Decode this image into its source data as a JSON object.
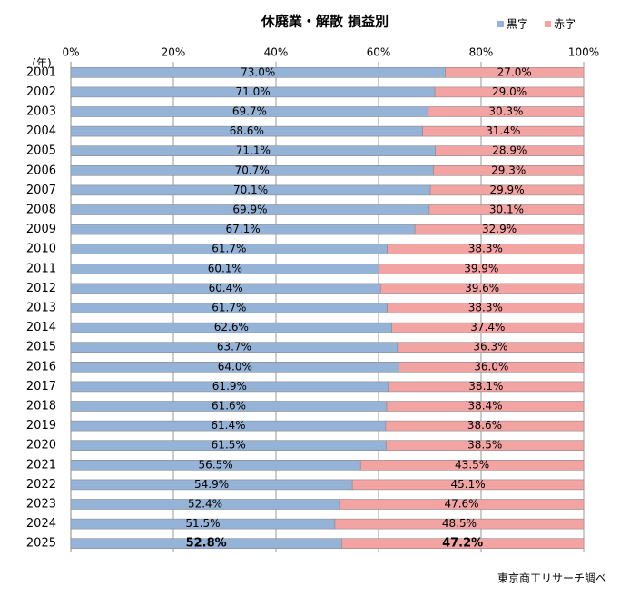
{
  "chart_data": {
    "type": "stacked-barh",
    "title": "休廃業・解散 損益別",
    "y_label": "(年)",
    "source": "東京商工リサーチ調べ",
    "categories": [
      "2001",
      "2002",
      "2003",
      "2004",
      "2005",
      "2006",
      "2007",
      "2008",
      "2009",
      "2010",
      "2011",
      "2012",
      "2013",
      "2014",
      "2015",
      "2016",
      "2017",
      "2018",
      "2019",
      "2020",
      "2021",
      "2022",
      "2023",
      "2024",
      "2025"
    ],
    "series": [
      {
        "name": "黒字",
        "color": "#95b3d7",
        "values": [
          73.0,
          71.0,
          69.7,
          68.6,
          71.1,
          70.7,
          70.1,
          69.9,
          67.1,
          61.7,
          60.1,
          60.4,
          61.7,
          62.6,
          63.7,
          64.0,
          61.9,
          61.6,
          61.4,
          61.5,
          56.5,
          54.9,
          52.4,
          51.5,
          52.8
        ],
        "value_labels": [
          "73.0%",
          "71.0%",
          "69.7%",
          "68.6%",
          "71.1%",
          "70.7%",
          "70.1%",
          "69.9%",
          "67.1%",
          "61.7%",
          "60.1%",
          "60.4%",
          "61.7%",
          "62.6%",
          "63.7%",
          "64.0%",
          "61.9%",
          "61.6%",
          "61.4%",
          "61.5%",
          "56.5%",
          "54.9%",
          "52.4%",
          "51.5%",
          "52.8%"
        ]
      },
      {
        "name": "赤字",
        "color": "#f4a3a3",
        "values": [
          27.0,
          29.0,
          30.3,
          31.4,
          28.9,
          29.3,
          29.9,
          30.1,
          32.9,
          38.3,
          39.9,
          39.6,
          38.3,
          37.4,
          36.3,
          36.0,
          38.1,
          38.4,
          38.6,
          38.5,
          43.5,
          45.1,
          47.6,
          48.5,
          47.2
        ],
        "value_labels": [
          "27.0%",
          "29.0%",
          "30.3%",
          "31.4%",
          "28.9%",
          "29.3%",
          "29.9%",
          "30.1%",
          "32.9%",
          "38.3%",
          "39.9%",
          "39.6%",
          "38.3%",
          "37.4%",
          "36.3%",
          "36.0%",
          "38.1%",
          "38.4%",
          "38.6%",
          "38.5%",
          "43.5%",
          "45.1%",
          "47.6%",
          "48.5%",
          "47.2%"
        ]
      }
    ],
    "xlim": [
      0,
      100
    ],
    "xticks": [
      {
        "value": 0,
        "label": "0%"
      },
      {
        "value": 20,
        "label": "20%"
      },
      {
        "value": 40,
        "label": "40%"
      },
      {
        "value": 60,
        "label": "60%"
      },
      {
        "value": 80,
        "label": "80%"
      },
      {
        "value": 100,
        "label": "100%"
      }
    ],
    "grid": true,
    "legend": "top-right"
  }
}
